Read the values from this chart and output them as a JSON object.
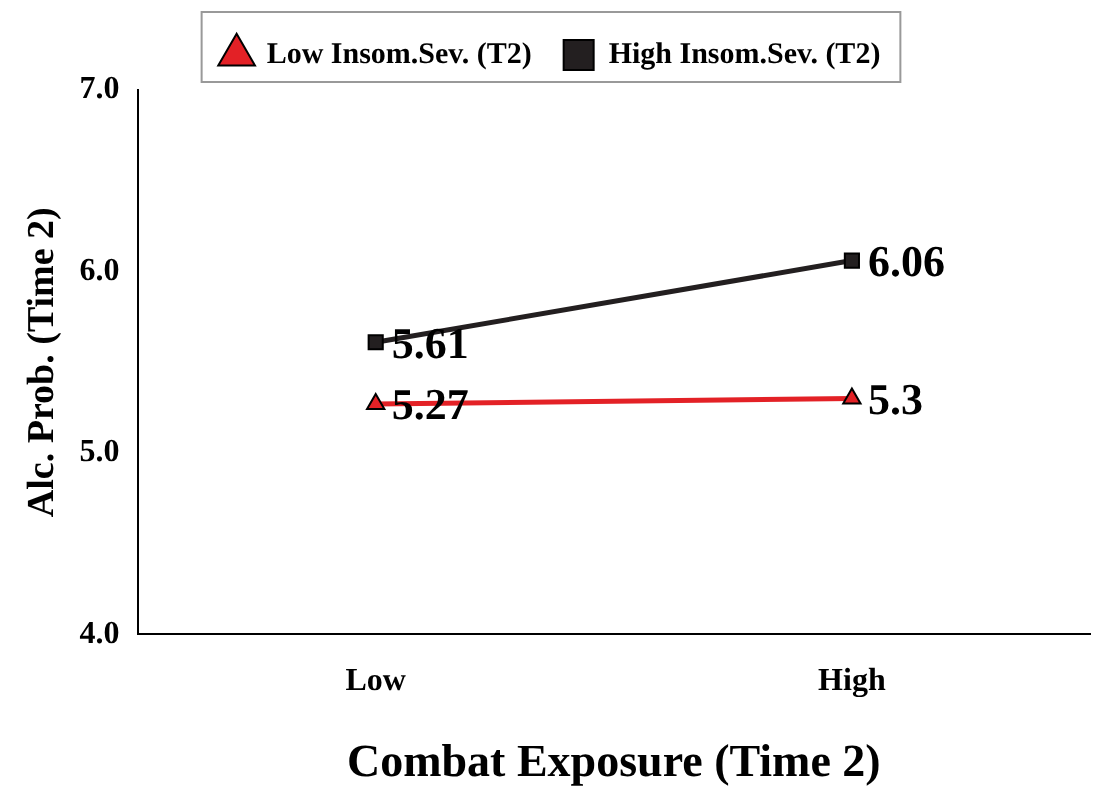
{
  "chart_data": {
    "type": "line",
    "xlabel": "Combat Exposure (Time 2)",
    "ylabel": "Alc. Prob. (Time 2)",
    "categories": [
      "Low",
      "High"
    ],
    "series": [
      {
        "name": "Low Insom.Sev. (T2)",
        "color": "#e32126",
        "values": [
          5.27,
          5.3
        ],
        "marker": "triangle"
      },
      {
        "name": "High Insom.Sev. (T2)",
        "color": "#231f20",
        "values": [
          5.61,
          6.06
        ],
        "marker": "square"
      }
    ],
    "ylim": [
      4,
      7
    ],
    "yticks": [
      {
        "value": 4,
        "label": "4.0"
      },
      {
        "value": 5,
        "label": "5.0"
      },
      {
        "value": 6,
        "label": "6.0"
      },
      {
        "value": 7,
        "label": "7.0"
      }
    ],
    "grid": false,
    "legend": "top",
    "data_labels": true,
    "line_style": "solid"
  }
}
